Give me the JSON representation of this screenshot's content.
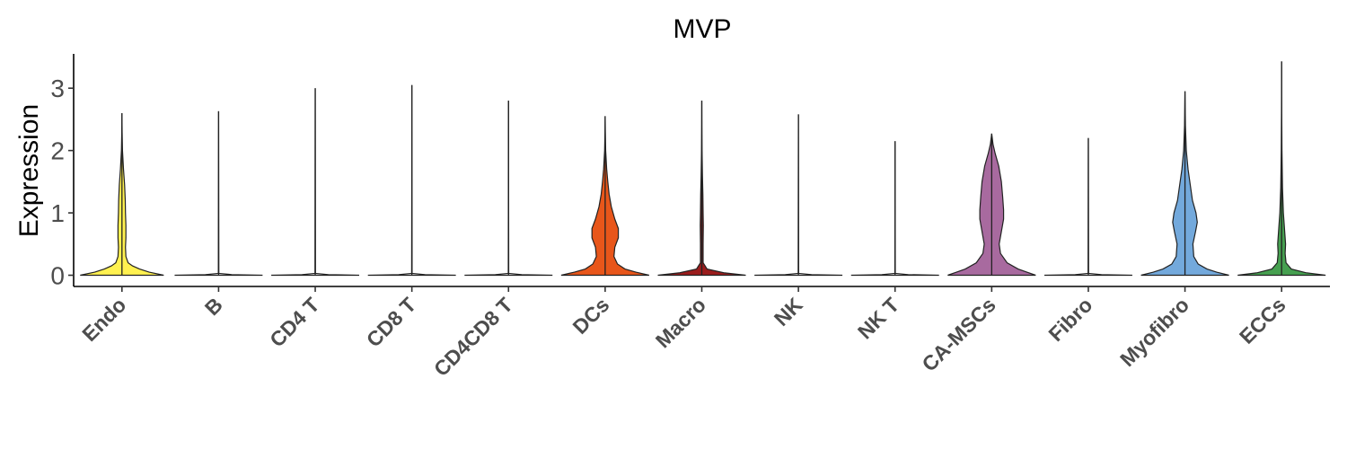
{
  "chart_data": {
    "type": "violin",
    "title": "MVP",
    "xlabel": "",
    "ylabel": "Expression",
    "ylim": [
      -0.18,
      3.55
    ],
    "yticks": [
      0,
      1,
      2,
      3
    ],
    "grid": false,
    "legend": "none",
    "categories": [
      "Endo",
      "B",
      "CD4 T",
      "CD8 T",
      "CD4CD8 T",
      "DCs",
      "Macro",
      "NK",
      "NK T",
      "CA-MSCs",
      "Fibro",
      "Myofibro",
      "ECCs"
    ],
    "series": [
      {
        "category": "Endo",
        "color": "#FFF150",
        "max": 2.6,
        "density": [
          [
            0,
            0.95
          ],
          [
            0.05,
            0.62
          ],
          [
            0.1,
            0.4
          ],
          [
            0.15,
            0.24
          ],
          [
            0.2,
            0.14
          ],
          [
            0.3,
            0.09
          ],
          [
            0.45,
            0.08
          ],
          [
            0.6,
            0.09
          ],
          [
            0.8,
            0.09
          ],
          [
            1.0,
            0.08
          ],
          [
            1.2,
            0.075
          ],
          [
            1.45,
            0.06
          ],
          [
            1.7,
            0.035
          ],
          [
            2.0,
            0.012
          ],
          [
            2.3,
            0.004
          ],
          [
            2.6,
            0.0
          ]
        ]
      },
      {
        "category": "B",
        "color": "#FFFFFF",
        "max": 2.63,
        "density": [
          [
            0,
            1.0
          ],
          [
            0.01,
            0.3
          ],
          [
            0.03,
            0.005
          ],
          [
            2.63,
            0.0
          ]
        ]
      },
      {
        "category": "CD4 T",
        "color": "#FFFFFF",
        "max": 3.0,
        "density": [
          [
            0,
            1.0
          ],
          [
            0.01,
            0.3
          ],
          [
            0.03,
            0.005
          ],
          [
            3.0,
            0.0
          ]
        ]
      },
      {
        "category": "CD8 T",
        "color": "#FFFFFF",
        "max": 3.05,
        "density": [
          [
            0,
            1.0
          ],
          [
            0.01,
            0.3
          ],
          [
            0.03,
            0.005
          ],
          [
            3.05,
            0.0
          ]
        ]
      },
      {
        "category": "CD4CD8 T",
        "color": "#FFFFFF",
        "max": 2.8,
        "density": [
          [
            0,
            1.0
          ],
          [
            0.01,
            0.3
          ],
          [
            0.03,
            0.005
          ],
          [
            2.8,
            0.0
          ]
        ]
      },
      {
        "category": "DCs",
        "color": "#E8561A",
        "max": 2.55,
        "density": [
          [
            0,
            1.0
          ],
          [
            0.05,
            0.7
          ],
          [
            0.1,
            0.45
          ],
          [
            0.18,
            0.28
          ],
          [
            0.3,
            0.2
          ],
          [
            0.45,
            0.22
          ],
          [
            0.6,
            0.3
          ],
          [
            0.75,
            0.3
          ],
          [
            0.9,
            0.22
          ],
          [
            1.1,
            0.14
          ],
          [
            1.3,
            0.09
          ],
          [
            1.5,
            0.06
          ],
          [
            1.7,
            0.035
          ],
          [
            2.0,
            0.012
          ],
          [
            2.3,
            0.004
          ],
          [
            2.55,
            0.0
          ]
        ]
      },
      {
        "category": "Macro",
        "color": "#9B1C1C",
        "max": 2.8,
        "density": [
          [
            0,
            1.0
          ],
          [
            0.04,
            0.5
          ],
          [
            0.1,
            0.12
          ],
          [
            0.2,
            0.03
          ],
          [
            0.5,
            0.03
          ],
          [
            0.8,
            0.035
          ],
          [
            1.0,
            0.03
          ],
          [
            1.3,
            0.025
          ],
          [
            1.6,
            0.015
          ],
          [
            2.0,
            0.006
          ],
          [
            2.4,
            0.002
          ],
          [
            2.8,
            0.0
          ]
        ]
      },
      {
        "category": "NK",
        "color": "#FFFFFF",
        "max": 2.58,
        "density": [
          [
            0,
            1.0
          ],
          [
            0.01,
            0.3
          ],
          [
            0.03,
            0.005
          ],
          [
            2.58,
            0.0
          ]
        ]
      },
      {
        "category": "NK T",
        "color": "#FFFFFF",
        "max": 2.15,
        "density": [
          [
            0,
            1.0
          ],
          [
            0.01,
            0.3
          ],
          [
            0.03,
            0.005
          ],
          [
            2.15,
            0.0
          ]
        ]
      },
      {
        "category": "CA-MSCs",
        "color": "#A86A9F",
        "max": 2.27,
        "density": [
          [
            0,
            1.0
          ],
          [
            0.05,
            0.8
          ],
          [
            0.1,
            0.6
          ],
          [
            0.2,
            0.35
          ],
          [
            0.35,
            0.2
          ],
          [
            0.5,
            0.17
          ],
          [
            0.7,
            0.22
          ],
          [
            0.9,
            0.27
          ],
          [
            1.05,
            0.27
          ],
          [
            1.25,
            0.25
          ],
          [
            1.5,
            0.22
          ],
          [
            1.75,
            0.16
          ],
          [
            1.95,
            0.08
          ],
          [
            2.1,
            0.03
          ],
          [
            2.27,
            0.0
          ]
        ]
      },
      {
        "category": "Fibro",
        "color": "#FFFFFF",
        "max": 2.2,
        "density": [
          [
            0,
            1.0
          ],
          [
            0.01,
            0.3
          ],
          [
            0.03,
            0.005
          ],
          [
            2.2,
            0.0
          ]
        ]
      },
      {
        "category": "Myofibro",
        "color": "#73A9DC",
        "max": 2.95,
        "density": [
          [
            0,
            1.0
          ],
          [
            0.05,
            0.72
          ],
          [
            0.1,
            0.5
          ],
          [
            0.18,
            0.3
          ],
          [
            0.3,
            0.2
          ],
          [
            0.5,
            0.18
          ],
          [
            0.7,
            0.24
          ],
          [
            0.85,
            0.28
          ],
          [
            1.0,
            0.25
          ],
          [
            1.2,
            0.17
          ],
          [
            1.45,
            0.12
          ],
          [
            1.7,
            0.07
          ],
          [
            2.0,
            0.03
          ],
          [
            2.4,
            0.01
          ],
          [
            2.95,
            0.0
          ]
        ]
      },
      {
        "category": "ECCs",
        "color": "#46A050",
        "max": 3.43,
        "density": [
          [
            0,
            1.0
          ],
          [
            0.04,
            0.55
          ],
          [
            0.1,
            0.22
          ],
          [
            0.2,
            0.1
          ],
          [
            0.35,
            0.08
          ],
          [
            0.5,
            0.09
          ],
          [
            0.7,
            0.07
          ],
          [
            1.0,
            0.04
          ],
          [
            1.4,
            0.02
          ],
          [
            2.0,
            0.008
          ],
          [
            2.6,
            0.003
          ],
          [
            3.43,
            0.0
          ]
        ]
      }
    ]
  }
}
